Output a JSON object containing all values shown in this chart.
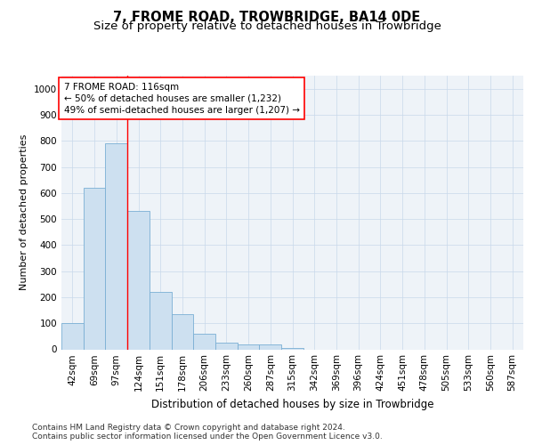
{
  "title": "7, FROME ROAD, TROWBRIDGE, BA14 0DE",
  "subtitle": "Size of property relative to detached houses in Trowbridge",
  "xlabel": "Distribution of detached houses by size in Trowbridge",
  "ylabel": "Number of detached properties",
  "categories": [
    "42sqm",
    "69sqm",
    "97sqm",
    "124sqm",
    "151sqm",
    "178sqm",
    "206sqm",
    "233sqm",
    "260sqm",
    "287sqm",
    "315sqm",
    "342sqm",
    "369sqm",
    "396sqm",
    "424sqm",
    "451sqm",
    "478sqm",
    "505sqm",
    "533sqm",
    "560sqm",
    "587sqm"
  ],
  "values": [
    100,
    620,
    790,
    530,
    220,
    135,
    60,
    25,
    20,
    20,
    5,
    0,
    0,
    0,
    0,
    0,
    0,
    0,
    0,
    0,
    0
  ],
  "bar_color": "#cde0f0",
  "bar_edge_color": "#7aafd4",
  "bar_edge_width": 0.6,
  "ylim": [
    0,
    1050
  ],
  "yticks": [
    0,
    100,
    200,
    300,
    400,
    500,
    600,
    700,
    800,
    900,
    1000
  ],
  "red_line_x": 2.5,
  "annotation_box_text": "7 FROME ROAD: 116sqm\n← 50% of detached houses are smaller (1,232)\n49% of semi-detached houses are larger (1,207) →",
  "grid_color": "#c8d8ea",
  "background_color": "#eef3f8",
  "footer_text": "Contains HM Land Registry data © Crown copyright and database right 2024.\nContains public sector information licensed under the Open Government Licence v3.0.",
  "title_fontsize": 10.5,
  "subtitle_fontsize": 9.5,
  "xlabel_fontsize": 8.5,
  "ylabel_fontsize": 8,
  "tick_fontsize": 7.5,
  "annotation_fontsize": 7.5,
  "footer_fontsize": 6.5
}
